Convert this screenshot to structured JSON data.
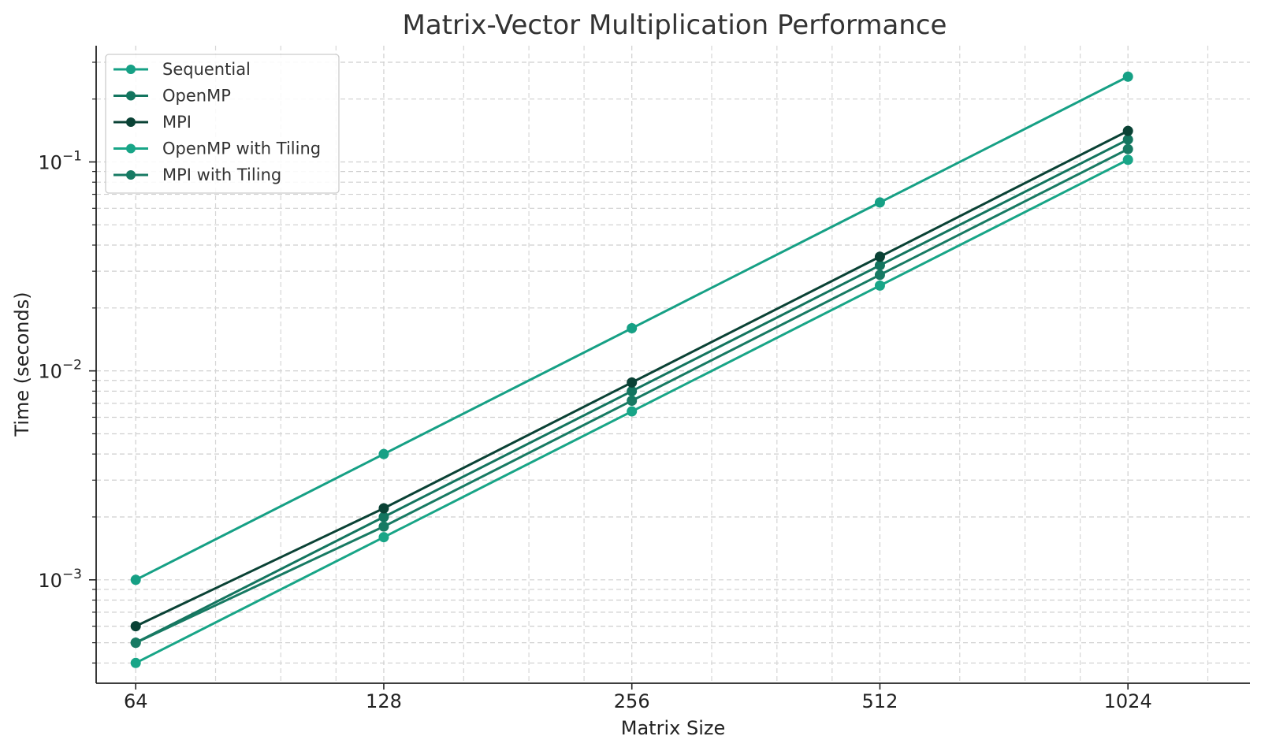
{
  "chart_data": {
    "type": "line",
    "title": "Matrix-Vector Multiplication Performance",
    "xlabel": "Matrix Size",
    "ylabel": "Time (seconds)",
    "x_scale": "log2",
    "y_scale": "log10",
    "x": [
      64,
      128,
      256,
      512,
      1024
    ],
    "x_tick_labels": [
      "64",
      "128",
      "256",
      "512",
      "1024"
    ],
    "y_ticks": [
      {
        "value": 0.001,
        "base": "10",
        "exp": "−3"
      },
      {
        "value": 0.01,
        "base": "10",
        "exp": "−2"
      },
      {
        "value": 0.1,
        "base": "10",
        "exp": "−1"
      }
    ],
    "xlim": [
      57.3,
      1440
    ],
    "ylim": [
      0.00032,
      0.36
    ],
    "grid": true,
    "legend_position": "top-left",
    "series": [
      {
        "name": "Sequential",
        "color": "#16a085",
        "values": [
          0.001,
          0.004,
          0.016,
          0.064,
          0.256
        ]
      },
      {
        "name": "OpenMP",
        "color": "#13755f",
        "values": [
          0.0005,
          0.002,
          0.008,
          0.032,
          0.128
        ]
      },
      {
        "name": "MPI",
        "color": "#0a4235",
        "values": [
          0.0006,
          0.0022,
          0.0088,
          0.0352,
          0.1408
        ]
      },
      {
        "name": "OpenMP with Tiling",
        "color": "#18a587",
        "values": [
          0.0004,
          0.0016,
          0.0064,
          0.0256,
          0.1024
        ]
      },
      {
        "name": "MPI with Tiling",
        "color": "#177a63",
        "values": [
          0.0005,
          0.0018,
          0.0072,
          0.0288,
          0.1152
        ]
      }
    ]
  }
}
